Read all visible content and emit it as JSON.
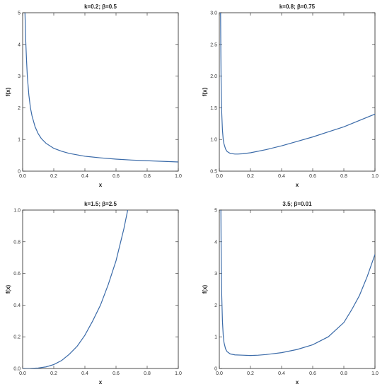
{
  "chart_data": [
    {
      "type": "line",
      "title": "k=0.2; β=0.5",
      "xlabel": "x",
      "ylabel": "f(x)",
      "xlim": [
        0,
        1
      ],
      "ylim": [
        0,
        5
      ],
      "xticks": [
        "0.0",
        "0.2",
        "0.4",
        "0.6",
        "0.8",
        "1.0"
      ],
      "yticks": [
        "0",
        "1",
        "2",
        "3",
        "4",
        "5"
      ],
      "grid": false,
      "series": [
        {
          "x": [
            0.015,
            0.02,
            0.025,
            0.03,
            0.04,
            0.05,
            0.06,
            0.08,
            0.1,
            0.12,
            0.15,
            0.2,
            0.25,
            0.3,
            0.4,
            0.5,
            0.6,
            0.7,
            0.8,
            0.9,
            1.0
          ],
          "y": [
            5.0,
            4.1,
            3.5,
            3.0,
            2.4,
            2.0,
            1.75,
            1.4,
            1.18,
            1.03,
            0.88,
            0.72,
            0.63,
            0.56,
            0.47,
            0.42,
            0.38,
            0.35,
            0.33,
            0.31,
            0.29
          ]
        }
      ]
    },
    {
      "type": "line",
      "title": "k=0.8; β=0.75",
      "xlabel": "x",
      "ylabel": "f(x)",
      "xlim": [
        0,
        1
      ],
      "ylim": [
        0.5,
        3.0
      ],
      "xticks": [
        "0.0",
        "0.2",
        "0.4",
        "0.6",
        "0.8",
        "1.0"
      ],
      "yticks": [
        "0.5",
        "1.0",
        "1.5",
        "2.0",
        "2.5",
        "3.0"
      ],
      "grid": false,
      "series": [
        {
          "x": [
            0.008,
            0.01,
            0.012,
            0.015,
            0.02,
            0.025,
            0.03,
            0.04,
            0.05,
            0.07,
            0.1,
            0.12,
            0.15,
            0.2,
            0.3,
            0.4,
            0.5,
            0.6,
            0.7,
            0.8,
            0.9,
            1.0
          ],
          "y": [
            3.0,
            2.3,
            1.8,
            1.45,
            1.15,
            1.0,
            0.93,
            0.85,
            0.81,
            0.78,
            0.77,
            0.77,
            0.775,
            0.79,
            0.84,
            0.9,
            0.97,
            1.04,
            1.12,
            1.2,
            1.3,
            1.4
          ]
        }
      ]
    },
    {
      "type": "line",
      "title": "k=1.5; β=2.5",
      "xlabel": "x",
      "ylabel": "f(x)",
      "xlim": [
        0,
        1
      ],
      "ylim": [
        0,
        1.0
      ],
      "xticks": [
        "0.0",
        "0.2",
        "0.4",
        "0.6",
        "0.8",
        "1.0"
      ],
      "yticks": [
        "0.0",
        "0.2",
        "0.4",
        "0.6",
        "0.8",
        "1.0"
      ],
      "grid": false,
      "series": [
        {
          "x": [
            0.0,
            0.05,
            0.1,
            0.15,
            0.2,
            0.25,
            0.3,
            0.35,
            0.4,
            0.45,
            0.5,
            0.55,
            0.6,
            0.65,
            0.675
          ],
          "y": [
            0.0,
            0.0005,
            0.003,
            0.01,
            0.025,
            0.05,
            0.09,
            0.14,
            0.21,
            0.3,
            0.4,
            0.53,
            0.68,
            0.88,
            1.0
          ]
        }
      ]
    },
    {
      "type": "line",
      "title": "3.5; β=0.01",
      "xlabel": "x",
      "ylabel": "f(x)",
      "xlim": [
        0,
        1
      ],
      "ylim": [
        0,
        5
      ],
      "xticks": [
        "0.0",
        "0.2",
        "0.4",
        "0.6",
        "0.8",
        "1.0"
      ],
      "yticks": [
        "0",
        "1",
        "2",
        "3",
        "4",
        "5"
      ],
      "grid": false,
      "series": [
        {
          "x": [
            0.01,
            0.012,
            0.015,
            0.02,
            0.025,
            0.03,
            0.04,
            0.05,
            0.07,
            0.1,
            0.15,
            0.2,
            0.25,
            0.3,
            0.4,
            0.5,
            0.6,
            0.7,
            0.8,
            0.85,
            0.9,
            0.95,
            1.0
          ],
          "y": [
            5.0,
            3.5,
            2.4,
            1.5,
            1.05,
            0.82,
            0.62,
            0.53,
            0.46,
            0.43,
            0.42,
            0.41,
            0.42,
            0.44,
            0.5,
            0.6,
            0.75,
            1.0,
            1.45,
            1.85,
            2.3,
            2.9,
            3.6
          ]
        }
      ]
    }
  ]
}
